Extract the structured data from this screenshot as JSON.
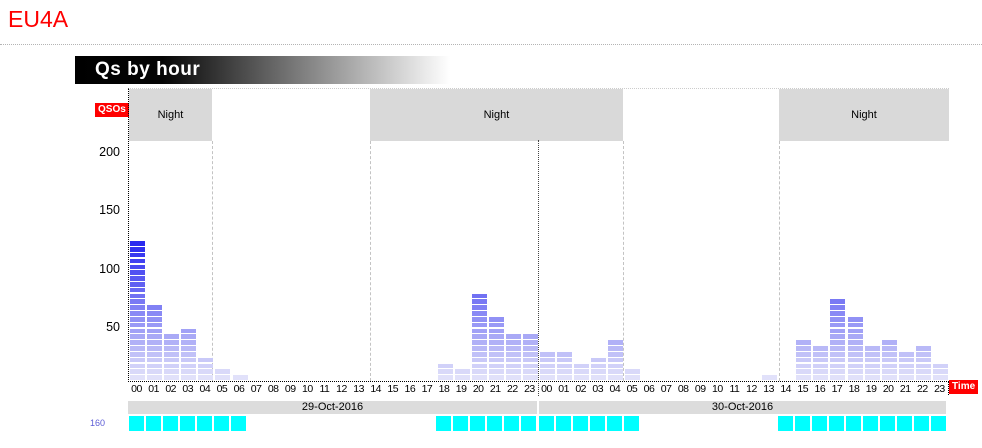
{
  "header": {
    "callsign": "EU4A",
    "title": "Qs by hour"
  },
  "colors": {
    "accent_red": "#ff0000",
    "night_gray": "#d9d9d9",
    "date_gray": "#dcdcdc",
    "band_cyan": "#00ffff",
    "band_label_blue": "#5c5cd6",
    "bar_low": "#e9e9fa",
    "bar_high": "#1111ee"
  },
  "chart_data": {
    "type": "bar",
    "title": "Qs by hour",
    "ylabel": "QSOs",
    "xlabel": "Time",
    "y_ticks": [
      50,
      100,
      150,
      200
    ],
    "ylim": [
      0,
      250
    ],
    "grid": false,
    "qsos_per_segment": 5,
    "hour_categories": [
      "00",
      "01",
      "02",
      "03",
      "04",
      "05",
      "06",
      "07",
      "08",
      "09",
      "10",
      "11",
      "12",
      "13",
      "14",
      "15",
      "16",
      "17",
      "18",
      "19",
      "20",
      "21",
      "22",
      "23"
    ],
    "days": [
      {
        "date": "29-Oct-2016",
        "values": [
          120,
          65,
          40,
          45,
          20,
          10,
          5,
          0,
          0,
          0,
          0,
          0,
          0,
          0,
          0,
          0,
          0,
          0,
          15,
          10,
          75,
          55,
          40,
          40
        ]
      },
      {
        "date": "30-Oct-2016",
        "values": [
          25,
          25,
          15,
          20,
          35,
          10,
          0,
          0,
          0,
          0,
          0,
          0,
          0,
          5,
          0,
          35,
          30,
          70,
          55,
          30,
          35,
          25,
          30,
          15
        ]
      }
    ],
    "night_label": "Night",
    "night_bands_hours": [
      [
        0,
        4.85
      ],
      [
        14.1,
        28.92
      ],
      [
        38.05,
        48
      ]
    ]
  },
  "band_activity": {
    "band_label": "160",
    "days": [
      {
        "active_hours": [
          0,
          1,
          2,
          3,
          4,
          5,
          6,
          18,
          19,
          20,
          21,
          22,
          23
        ]
      },
      {
        "active_hours": [
          0,
          1,
          2,
          3,
          4,
          5,
          14,
          15,
          16,
          17,
          18,
          19,
          20,
          21,
          22,
          23
        ]
      }
    ]
  }
}
